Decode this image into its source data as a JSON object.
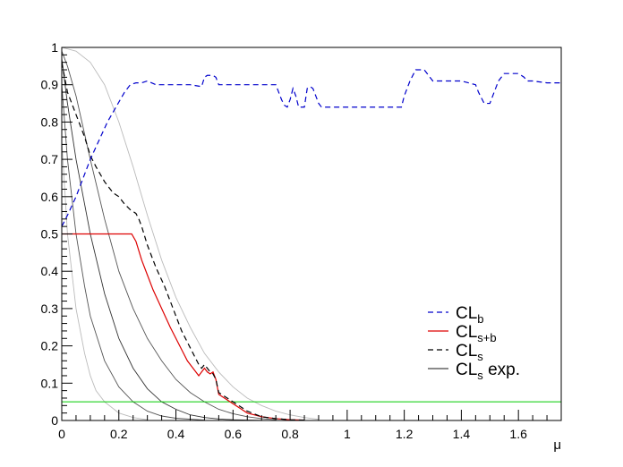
{
  "chart_data": {
    "type": "line",
    "xlabel": "μ",
    "ylabel": "",
    "xlim": [
      0,
      1.75
    ],
    "ylim": [
      0,
      1
    ],
    "x_ticks": [
      "0",
      "0.2",
      "0.4",
      "0.6",
      "0.8",
      "1",
      "1.2",
      "1.4",
      "1.6"
    ],
    "x_tick_values": [
      0,
      0.2,
      0.4,
      0.6,
      0.8,
      1.0,
      1.2,
      1.4,
      1.6
    ],
    "y_ticks": [
      "0",
      "0.1",
      "0.2",
      "0.3",
      "0.4",
      "0.5",
      "0.6",
      "0.7",
      "0.8",
      "0.9",
      "1"
    ],
    "y_tick_values": [
      0,
      0.1,
      0.2,
      0.3,
      0.4,
      0.5,
      0.6,
      0.7,
      0.8,
      0.9,
      1.0
    ],
    "grid": false,
    "legend_position": "bottom-right",
    "legend": [
      {
        "key": "clb",
        "main": "CL",
        "sub": "b",
        "suffix": "",
        "color": "#0000cc",
        "dash": "6,4"
      },
      {
        "key": "clsb",
        "main": "CL",
        "sub": "s+b",
        "suffix": "",
        "color": "#dd0000",
        "dash": ""
      },
      {
        "key": "cls",
        "main": "CL",
        "sub": "s",
        "suffix": "",
        "color": "#000000",
        "dash": "6,4"
      },
      {
        "key": "clsexp",
        "main": "CL",
        "sub": "s",
        "suffix": " exp.",
        "color": "#444444",
        "dash": ""
      }
    ],
    "series": [
      {
        "key": "clb",
        "color": "#0000cc",
        "dash": "6,4",
        "width": 1.2,
        "x": [
          0,
          0.02,
          0.05,
          0.08,
          0.1,
          0.13,
          0.16,
          0.19,
          0.22,
          0.24,
          0.26,
          0.28,
          0.3,
          0.33,
          0.36,
          0.4,
          0.45,
          0.49,
          0.5,
          0.51,
          0.53,
          0.54,
          0.55,
          0.6,
          0.65,
          0.7,
          0.75,
          0.76,
          0.77,
          0.78,
          0.79,
          0.8,
          0.81,
          0.82,
          0.83,
          0.84,
          0.85,
          0.86,
          0.87,
          0.88,
          0.89,
          0.9,
          0.91,
          0.92,
          0.95,
          1.0,
          1.1,
          1.19,
          1.2,
          1.22,
          1.24,
          1.27,
          1.29,
          1.3,
          1.35,
          1.4,
          1.45,
          1.46,
          1.48,
          1.5,
          1.51,
          1.53,
          1.55,
          1.6,
          1.62,
          1.63,
          1.65,
          1.7,
          1.75
        ],
        "y": [
          0.52,
          0.55,
          0.6,
          0.66,
          0.7,
          0.75,
          0.8,
          0.84,
          0.88,
          0.9,
          0.905,
          0.905,
          0.91,
          0.9,
          0.9,
          0.9,
          0.9,
          0.895,
          0.92,
          0.925,
          0.925,
          0.92,
          0.9,
          0.9,
          0.9,
          0.9,
          0.9,
          0.88,
          0.86,
          0.845,
          0.84,
          0.86,
          0.89,
          0.87,
          0.84,
          0.84,
          0.84,
          0.89,
          0.895,
          0.89,
          0.87,
          0.85,
          0.84,
          0.84,
          0.84,
          0.84,
          0.84,
          0.84,
          0.87,
          0.91,
          0.94,
          0.94,
          0.92,
          0.91,
          0.91,
          0.91,
          0.9,
          0.88,
          0.85,
          0.85,
          0.87,
          0.91,
          0.93,
          0.93,
          0.92,
          0.91,
          0.91,
          0.905,
          0.905
        ]
      },
      {
        "key": "clsb",
        "color": "#dd0000",
        "dash": "",
        "width": 1.2,
        "x": [
          0,
          0.05,
          0.1,
          0.15,
          0.2,
          0.245,
          0.26,
          0.28,
          0.3,
          0.32,
          0.35,
          0.38,
          0.4,
          0.42,
          0.44,
          0.46,
          0.48,
          0.49,
          0.5,
          0.51,
          0.52,
          0.53,
          0.54,
          0.55,
          0.57,
          0.6,
          0.63,
          0.65,
          0.7,
          0.75,
          0.8,
          0.85
        ],
        "y": [
          0.5,
          0.5,
          0.5,
          0.5,
          0.5,
          0.5,
          0.48,
          0.43,
          0.39,
          0.35,
          0.3,
          0.25,
          0.22,
          0.19,
          0.16,
          0.14,
          0.12,
          0.13,
          0.14,
          0.13,
          0.125,
          0.13,
          0.11,
          0.07,
          0.06,
          0.045,
          0.03,
          0.02,
          0.01,
          0.005,
          0.002,
          0.001
        ]
      },
      {
        "key": "cls",
        "color": "#000000",
        "dash": "6,4",
        "width": 1.2,
        "x": [
          0,
          0.02,
          0.05,
          0.08,
          0.1,
          0.12,
          0.15,
          0.18,
          0.2,
          0.22,
          0.24,
          0.25,
          0.26,
          0.27,
          0.28,
          0.3,
          0.33,
          0.36,
          0.38,
          0.4,
          0.42,
          0.44,
          0.46,
          0.48,
          0.49,
          0.5,
          0.51,
          0.52,
          0.53,
          0.54,
          0.55,
          0.58,
          0.6,
          0.63,
          0.65,
          0.7,
          0.75,
          0.8,
          0.85
        ],
        "y": [
          0.96,
          0.88,
          0.82,
          0.76,
          0.71,
          0.68,
          0.64,
          0.61,
          0.6,
          0.58,
          0.565,
          0.56,
          0.555,
          0.54,
          0.52,
          0.47,
          0.41,
          0.36,
          0.32,
          0.28,
          0.24,
          0.21,
          0.18,
          0.15,
          0.14,
          0.15,
          0.14,
          0.13,
          0.125,
          0.11,
          0.075,
          0.06,
          0.05,
          0.035,
          0.025,
          0.01,
          0.005,
          0.002,
          0.001
        ]
      },
      {
        "key": "exp_median",
        "color": "#333333",
        "dash": "",
        "width": 0.9,
        "x": [
          0,
          0.02,
          0.05,
          0.1,
          0.15,
          0.2,
          0.25,
          0.3,
          0.35,
          0.4,
          0.45,
          0.5,
          0.55,
          0.6,
          0.65,
          0.7
        ],
        "y": [
          0.97,
          0.85,
          0.7,
          0.5,
          0.34,
          0.22,
          0.14,
          0.085,
          0.05,
          0.03,
          0.015,
          0.008,
          0.004,
          0.002,
          0.001,
          0.0005
        ]
      },
      {
        "key": "exp_1sigma_up",
        "color": "#555555",
        "dash": "",
        "width": 0.9,
        "x": [
          0,
          0.02,
          0.05,
          0.1,
          0.15,
          0.2,
          0.25,
          0.3,
          0.35,
          0.4,
          0.45,
          0.5,
          0.55,
          0.6,
          0.65,
          0.7,
          0.75
        ],
        "y": [
          0.99,
          0.95,
          0.87,
          0.7,
          0.54,
          0.4,
          0.3,
          0.22,
          0.16,
          0.11,
          0.075,
          0.05,
          0.03,
          0.018,
          0.01,
          0.005,
          0.002
        ]
      },
      {
        "key": "exp_1sigma_down",
        "color": "#555555",
        "dash": "",
        "width": 0.9,
        "x": [
          0,
          0.02,
          0.05,
          0.08,
          0.1,
          0.15,
          0.2,
          0.25,
          0.3,
          0.35,
          0.4,
          0.5
        ],
        "y": [
          0.9,
          0.7,
          0.5,
          0.36,
          0.28,
          0.16,
          0.09,
          0.05,
          0.025,
          0.012,
          0.006,
          0.001
        ]
      },
      {
        "key": "exp_2sigma_up",
        "color": "#bbbbbb",
        "dash": "",
        "width": 0.9,
        "x": [
          0,
          0.05,
          0.1,
          0.15,
          0.2,
          0.25,
          0.3,
          0.35,
          0.4,
          0.45,
          0.5,
          0.55,
          0.6,
          0.65,
          0.7,
          0.75,
          0.8,
          0.85,
          0.9
        ],
        "y": [
          1.0,
          0.99,
          0.96,
          0.9,
          0.8,
          0.68,
          0.55,
          0.43,
          0.33,
          0.25,
          0.18,
          0.13,
          0.09,
          0.06,
          0.04,
          0.025,
          0.015,
          0.008,
          0.003
        ]
      },
      {
        "key": "exp_2sigma_down",
        "color": "#bbbbbb",
        "dash": "",
        "width": 0.9,
        "x": [
          0,
          0.02,
          0.05,
          0.08,
          0.1,
          0.12,
          0.15,
          0.2,
          0.25,
          0.3
        ],
        "y": [
          0.75,
          0.5,
          0.3,
          0.18,
          0.12,
          0.08,
          0.05,
          0.02,
          0.008,
          0.002
        ]
      },
      {
        "key": "threshold_0.05",
        "color": "#00cc00",
        "dash": "",
        "width": 1.0,
        "x": [
          0,
          1.75
        ],
        "y": [
          0.05,
          0.05
        ]
      }
    ]
  }
}
